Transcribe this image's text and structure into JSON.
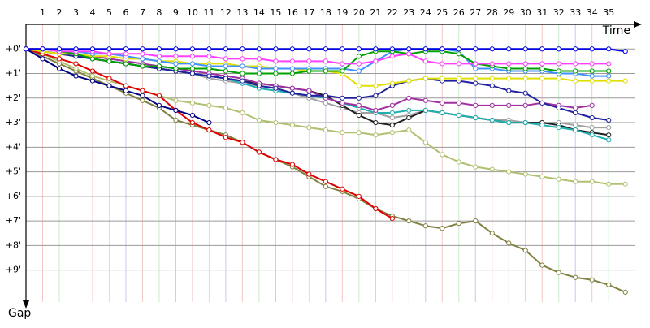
{
  "chart_data": {
    "type": "line",
    "x_label": "Time",
    "y_label": "Gap",
    "x": [
      0,
      1,
      2,
      3,
      4,
      5,
      6,
      7,
      8,
      9,
      10,
      11,
      12,
      13,
      14,
      15,
      16,
      17,
      18,
      19,
      20,
      21,
      22,
      23,
      24,
      25,
      26,
      27,
      28,
      29,
      30,
      31,
      32,
      33,
      34,
      35,
      36
    ],
    "xlim": [
      0,
      36.6
    ],
    "xticks": [
      1,
      2,
      3,
      4,
      5,
      6,
      7,
      8,
      9,
      10,
      11,
      12,
      13,
      14,
      15,
      16,
      17,
      18,
      19,
      20,
      21,
      22,
      23,
      24,
      25,
      26,
      27,
      28,
      29,
      30,
      31,
      32,
      33,
      34,
      35
    ],
    "ylim": [
      -1,
      10.3
    ],
    "yticks": [
      {
        "value": 0,
        "label": "+0'"
      },
      {
        "value": 1,
        "label": "+1'"
      },
      {
        "value": 2,
        "label": "+2'"
      },
      {
        "value": 3,
        "label": "+3'"
      },
      {
        "value": 4,
        "label": "+4'"
      },
      {
        "value": 5,
        "label": "+5'"
      },
      {
        "value": 6,
        "label": "+6'"
      },
      {
        "value": 7,
        "label": "+7'"
      },
      {
        "value": 8,
        "label": "+8'"
      },
      {
        "value": 9,
        "label": "+9'"
      }
    ],
    "y_inverted": true,
    "grid": true,
    "series": [
      {
        "color": "#808040",
        "values": [
          0,
          0.3,
          0.6,
          0.9,
          1.2,
          1.5,
          1.8,
          2.1,
          2.4,
          2.9,
          3.1,
          3.3,
          3.5,
          3.8,
          4.2,
          4.5,
          4.8,
          5.2,
          5.6,
          5.8,
          6.1,
          6.5,
          6.8,
          7.0,
          7.2,
          7.3,
          7.1,
          7.0,
          7.5,
          7.9,
          8.2,
          8.8,
          9.1,
          9.3,
          9.4,
          9.6,
          9.9
        ]
      },
      {
        "color": "#b0c070",
        "values": [
          0,
          0.2,
          0.5,
          0.8,
          1.1,
          1.3,
          1.5,
          1.7,
          1.9,
          2.1,
          2.2,
          2.3,
          2.4,
          2.6,
          2.9,
          3.0,
          3.1,
          3.2,
          3.3,
          3.4,
          3.4,
          3.5,
          3.4,
          3.3,
          3.8,
          4.3,
          4.6,
          4.8,
          4.9,
          5.0,
          5.1,
          5.2,
          5.3,
          5.4,
          5.4,
          5.5,
          5.5
        ]
      },
      {
        "color": "#e00000",
        "values": [
          0,
          0.2,
          0.4,
          0.6,
          0.9,
          1.2,
          1.5,
          1.7,
          1.9,
          2.5,
          3.0,
          3.3,
          3.6,
          3.8,
          4.2,
          4.5,
          4.7,
          5.1,
          5.4,
          5.7,
          6.0,
          6.5,
          6.9,
          null,
          null,
          null,
          null,
          null,
          null,
          null,
          null,
          null,
          null,
          null,
          null,
          null,
          null
        ]
      },
      {
        "color": "#000080",
        "values": [
          0,
          0.4,
          0.8,
          1.1,
          1.3,
          1.5,
          1.7,
          1.9,
          2.3,
          2.5,
          2.7,
          3.0,
          null,
          null,
          null,
          null,
          null,
          null,
          null,
          null,
          null,
          null,
          null,
          null,
          null,
          null,
          null,
          null,
          null,
          null,
          null,
          null,
          null,
          null,
          null,
          null,
          null
        ]
      },
      {
        "color": "#a0a0a0",
        "values": [
          0,
          0.1,
          0.2,
          0.3,
          0.4,
          0.5,
          0.6,
          0.7,
          0.8,
          0.9,
          1.0,
          1.2,
          1.3,
          1.4,
          1.5,
          1.6,
          1.8,
          2.0,
          2.2,
          2.4,
          2.6,
          2.6,
          2.8,
          2.7,
          2.5,
          2.6,
          2.7,
          2.8,
          2.9,
          2.9,
          3.0,
          3.0,
          3.0,
          3.1,
          3.2,
          3.2,
          null
        ]
      },
      {
        "color": "#202020",
        "values": [
          0,
          0.1,
          0.2,
          0.3,
          0.4,
          0.5,
          0.6,
          0.7,
          0.8,
          0.9,
          1.0,
          1.1,
          1.2,
          1.3,
          1.4,
          1.5,
          1.6,
          1.7,
          1.9,
          2.3,
          2.7,
          3.0,
          3.1,
          2.8,
          2.5,
          2.6,
          2.7,
          2.8,
          2.9,
          3.0,
          3.0,
          3.0,
          3.1,
          3.3,
          3.4,
          3.5,
          null
        ]
      },
      {
        "color": "#20b0b0",
        "values": [
          0,
          0.1,
          0.2,
          0.3,
          0.4,
          0.5,
          0.6,
          0.7,
          0.8,
          0.9,
          1.0,
          1.1,
          1.2,
          1.4,
          1.6,
          1.7,
          1.8,
          1.9,
          2.0,
          2.2,
          2.4,
          2.6,
          2.6,
          2.5,
          2.5,
          2.6,
          2.7,
          2.8,
          2.9,
          3.0,
          3.0,
          3.1,
          3.2,
          3.3,
          3.5,
          3.7,
          null
        ]
      },
      {
        "color": "#a030a0",
        "values": [
          0,
          0.1,
          0.2,
          0.3,
          0.3,
          0.4,
          0.5,
          0.6,
          0.7,
          0.8,
          0.9,
          1.0,
          1.1,
          1.2,
          1.4,
          1.5,
          1.6,
          1.7,
          2.0,
          2.2,
          2.3,
          2.5,
          2.3,
          2.0,
          2.1,
          2.2,
          2.2,
          2.3,
          2.3,
          2.3,
          2.3,
          2.2,
          2.3,
          2.4,
          2.3,
          null,
          null
        ]
      },
      {
        "color": "#2020a0",
        "values": [
          0,
          0.1,
          0.2,
          0.3,
          0.4,
          0.5,
          0.6,
          0.7,
          0.8,
          0.9,
          1.0,
          1.1,
          1.2,
          1.3,
          1.5,
          1.6,
          1.8,
          1.9,
          1.9,
          2.0,
          2.0,
          1.9,
          1.5,
          1.3,
          1.2,
          1.3,
          1.3,
          1.4,
          1.5,
          1.7,
          1.8,
          2.2,
          2.4,
          2.6,
          2.8,
          2.9,
          null
        ]
      },
      {
        "color": "#e0e000",
        "values": [
          0,
          0.1,
          0.2,
          0.2,
          0.3,
          0.3,
          0.4,
          0.4,
          0.5,
          0.5,
          0.6,
          0.6,
          0.6,
          0.7,
          0.7,
          0.8,
          0.8,
          0.9,
          0.9,
          1.0,
          1.5,
          1.5,
          1.4,
          1.3,
          1.2,
          1.2,
          1.2,
          1.2,
          1.2,
          1.2,
          1.2,
          1.2,
          1.2,
          1.3,
          1.3,
          1.3,
          1.3
        ]
      },
      {
        "color": "#4090ff",
        "values": [
          0,
          0,
          0.1,
          0.1,
          0.2,
          0.2,
          0.3,
          0.4,
          0.5,
          0.6,
          0.6,
          0.7,
          0.7,
          0.7,
          0.8,
          0.8,
          0.8,
          0.8,
          0.8,
          0.8,
          0.9,
          0.5,
          0.1,
          0.0,
          0.0,
          0.0,
          0.1,
          0.8,
          0.8,
          0.9,
          0.9,
          0.9,
          1.0,
          1.0,
          1.1,
          1.1,
          null
        ]
      },
      {
        "color": "#00a000",
        "values": [
          0,
          0,
          0.1,
          0.2,
          0.4,
          0.5,
          0.6,
          0.7,
          0.7,
          0.8,
          0.8,
          0.8,
          0.9,
          1.0,
          1.0,
          1.0,
          1.0,
          0.9,
          0.9,
          0.9,
          0.3,
          0.1,
          0.1,
          0.2,
          0.1,
          0.1,
          0.2,
          0.6,
          0.7,
          0.8,
          0.8,
          0.8,
          0.9,
          0.9,
          0.9,
          0.9,
          null
        ]
      },
      {
        "color": "#ff40ff",
        "values": [
          0,
          0,
          0.1,
          0.1,
          0.1,
          0.2,
          0.2,
          0.2,
          0.3,
          0.3,
          0.3,
          0.3,
          0.4,
          0.4,
          0.4,
          0.5,
          0.5,
          0.5,
          0.5,
          0.6,
          0.6,
          0.5,
          0.3,
          0.2,
          0.5,
          0.6,
          0.6,
          0.6,
          0.6,
          0.6,
          0.6,
          0.6,
          0.6,
          0.6,
          0.6,
          0.6,
          null
        ]
      },
      {
        "color": "#0000e0",
        "values": [
          0,
          0,
          0,
          0,
          0,
          0,
          0,
          0,
          0,
          0,
          0,
          0,
          0,
          0,
          0,
          0,
          0,
          0,
          0,
          0,
          0,
          0,
          0,
          0,
          0,
          0,
          0,
          0,
          0,
          0,
          0,
          0,
          0,
          0,
          0,
          0,
          0.1
        ]
      }
    ]
  }
}
